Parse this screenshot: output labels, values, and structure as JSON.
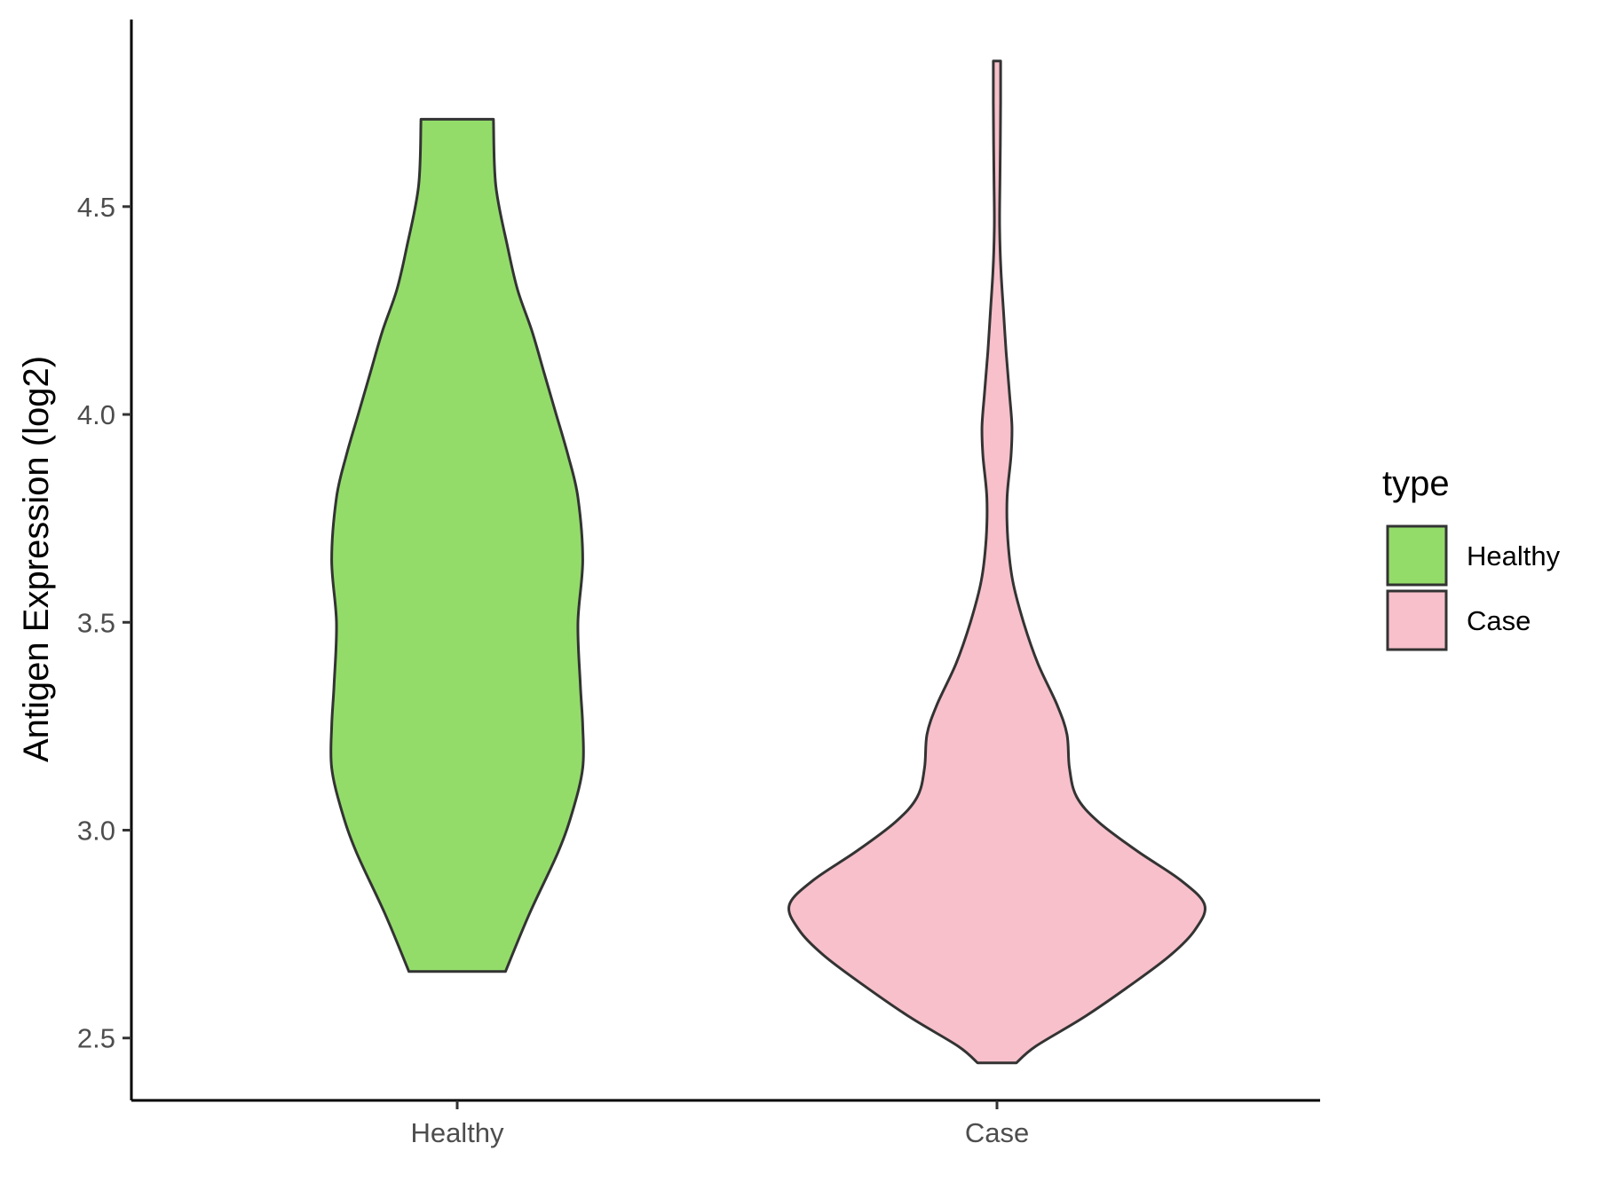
{
  "chart_data": {
    "type": "violin",
    "ylabel": "Antigen Expression (log2)",
    "xlabel": "",
    "ylim": [
      2.35,
      4.95
    ],
    "yticks": [
      2.5,
      3.0,
      3.5,
      4.0,
      4.5
    ],
    "ytick_labels": [
      "2.5",
      "3.0",
      "3.5",
      "4.0",
      "4.5"
    ],
    "categories": [
      "Healthy",
      "Case"
    ],
    "grid": false,
    "legend": {
      "title": "type",
      "position": "right",
      "entries": [
        {
          "label": "Healthy",
          "color": "#93dc6a"
        },
        {
          "label": "Case",
          "color": "#f7c0cb"
        }
      ]
    },
    "series": [
      {
        "category": "Healthy",
        "color": "#93dc6a",
        "range": [
          2.66,
          4.71
        ],
        "density_profile": [
          [
            2.66,
            0.2
          ],
          [
            2.8,
            0.3
          ],
          [
            2.95,
            0.42
          ],
          [
            3.05,
            0.48
          ],
          [
            3.15,
            0.52
          ],
          [
            3.25,
            0.52
          ],
          [
            3.35,
            0.51
          ],
          [
            3.5,
            0.5
          ],
          [
            3.65,
            0.52
          ],
          [
            3.8,
            0.5
          ],
          [
            3.9,
            0.46
          ],
          [
            4.0,
            0.41
          ],
          [
            4.1,
            0.36
          ],
          [
            4.2,
            0.31
          ],
          [
            4.3,
            0.25
          ],
          [
            4.4,
            0.21
          ],
          [
            4.55,
            0.16
          ],
          [
            4.71,
            0.15
          ]
        ]
      },
      {
        "category": "Case",
        "color": "#f7c0cb",
        "range": [
          2.44,
          4.85
        ],
        "density_profile": [
          [
            2.44,
            0.08
          ],
          [
            2.48,
            0.16
          ],
          [
            2.55,
            0.36
          ],
          [
            2.63,
            0.56
          ],
          [
            2.7,
            0.72
          ],
          [
            2.76,
            0.82
          ],
          [
            2.82,
            0.86
          ],
          [
            2.88,
            0.76
          ],
          [
            2.95,
            0.58
          ],
          [
            3.02,
            0.42
          ],
          [
            3.08,
            0.33
          ],
          [
            3.15,
            0.3
          ],
          [
            3.23,
            0.29
          ],
          [
            3.3,
            0.25
          ],
          [
            3.4,
            0.17
          ],
          [
            3.5,
            0.11
          ],
          [
            3.6,
            0.065
          ],
          [
            3.7,
            0.045
          ],
          [
            3.8,
            0.042
          ],
          [
            3.9,
            0.058
          ],
          [
            3.97,
            0.062
          ],
          [
            4.05,
            0.052
          ],
          [
            4.15,
            0.038
          ],
          [
            4.25,
            0.027
          ],
          [
            4.35,
            0.016
          ],
          [
            4.45,
            0.011
          ],
          [
            4.55,
            0.012
          ],
          [
            4.65,
            0.014
          ],
          [
            4.75,
            0.015
          ],
          [
            4.85,
            0.015
          ]
        ]
      }
    ]
  }
}
